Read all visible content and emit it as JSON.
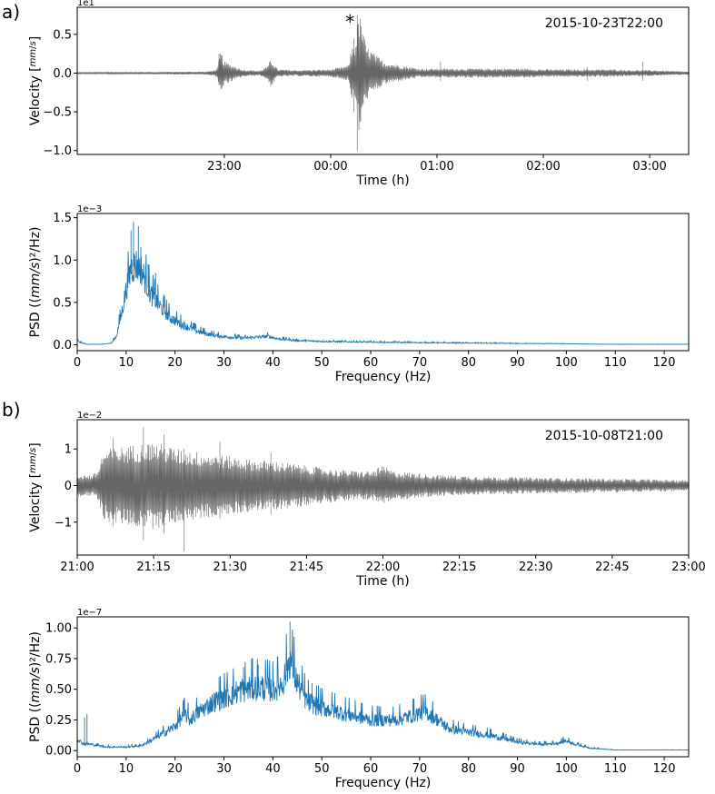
{
  "chart_data": [
    {
      "id": "a_velocity",
      "type": "line",
      "panel_label": "a)",
      "timestamp": "2015-10-23T22:00",
      "marker": "*",
      "ylabel": "Velocity [mm/s]",
      "ylabel_main": "Velocity",
      "ylabel_num": "mm",
      "ylabel_den": "s",
      "xlabel": "Time (h)",
      "multiplier": "1e1",
      "xlim": [
        -83,
        262
      ],
      "ylim": [
        -1.05,
        0.85
      ],
      "xtick_values": [
        0,
        60,
        120,
        180,
        240
      ],
      "xtick_labels": [
        "23:00",
        "00:00",
        "01:00",
        "02:00",
        "03:00"
      ],
      "ytick_values": [
        0.5,
        0.0,
        -0.5,
        -1.0
      ],
      "ytick_labels": [
        "0.5",
        "0.0",
        "−0.5",
        "−1.0"
      ],
      "line_color": "#666666",
      "series": [
        {
          "envelope": [
            [
              -83,
              0.01
            ],
            [
              -10,
              0.02
            ],
            [
              -4,
              0.05
            ],
            [
              -2,
              0.3
            ],
            [
              0,
              0.15
            ],
            [
              5,
              0.1
            ],
            [
              10,
              0.05
            ],
            [
              20,
              0.03
            ],
            [
              25,
              0.1
            ],
            [
              26,
              0.2
            ],
            [
              30,
              0.05
            ],
            [
              40,
              0.04
            ],
            [
              60,
              0.05
            ],
            [
              70,
              0.1
            ],
            [
              72,
              0.35
            ],
            [
              74,
              0.4
            ],
            [
              76,
              0.8
            ],
            [
              80,
              0.35
            ],
            [
              85,
              0.25
            ],
            [
              90,
              0.15
            ],
            [
              100,
              0.1
            ],
            [
              110,
              0.06
            ],
            [
              140,
              0.06
            ],
            [
              170,
              0.06
            ],
            [
              180,
              0.05
            ],
            [
              200,
              0.05
            ],
            [
              220,
              0.05
            ],
            [
              230,
              0.04
            ],
            [
              240,
              0.04
            ],
            [
              262,
              0.02
            ]
          ],
          "spikes": [
            [
              -3,
              0.25,
              -0.15
            ],
            [
              75,
              0.75,
              -1.0
            ],
            [
              73,
              0.45,
              -0.5
            ],
            [
              78,
              0.5,
              -0.4
            ],
            [
              122,
              0.15,
              -0.1
            ],
            [
              205,
              0.08,
              -0.1
            ],
            [
              236,
              0.15,
              -0.1
            ]
          ]
        }
      ]
    },
    {
      "id": "a_psd",
      "type": "line",
      "ylabel": "PSD ((mm/s)²/Hz)",
      "ylabel_main": "PSD ((",
      "ylabel_italic": "mm/s",
      "ylabel_end": ")²/Hz)",
      "xlabel": "Frequency (Hz)",
      "multiplier": "1e−3",
      "xlim": [
        0,
        125
      ],
      "ylim": [
        -0.07,
        1.55
      ],
      "xtick_values": [
        0,
        10,
        20,
        30,
        40,
        50,
        60,
        70,
        80,
        90,
        100,
        110,
        120
      ],
      "xtick_labels": [
        "0",
        "10",
        "20",
        "30",
        "40",
        "50",
        "60",
        "70",
        "80",
        "90",
        "100",
        "110",
        "120"
      ],
      "ytick_values": [
        0.0,
        0.5,
        1.0,
        1.5
      ],
      "ytick_labels": [
        "0.0",
        "0.5",
        "1.0",
        "1.5"
      ],
      "line_color": "#1f77b4",
      "series": [
        {
          "envelope": [
            [
              0,
              0.06
            ],
            [
              0.5,
              0.03
            ],
            [
              2,
              0.005
            ],
            [
              5,
              0.005
            ],
            [
              7,
              0.02
            ],
            [
              8,
              0.1
            ],
            [
              9,
              0.35
            ],
            [
              10,
              0.65
            ],
            [
              11,
              0.9
            ],
            [
              12,
              0.95
            ],
            [
              13,
              0.9
            ],
            [
              14,
              0.75
            ],
            [
              15,
              0.6
            ],
            [
              17,
              0.45
            ],
            [
              19,
              0.32
            ],
            [
              21,
              0.25
            ],
            [
              23,
              0.2
            ],
            [
              25,
              0.15
            ],
            [
              28,
              0.11
            ],
            [
              31,
              0.09
            ],
            [
              34,
              0.08
            ],
            [
              37,
              0.09
            ],
            [
              39,
              0.1
            ],
            [
              41,
              0.07
            ],
            [
              45,
              0.05
            ],
            [
              50,
              0.04
            ],
            [
              60,
              0.03
            ],
            [
              70,
              0.025
            ],
            [
              80,
              0.02
            ],
            [
              90,
              0.015
            ],
            [
              100,
              0.012
            ],
            [
              103,
              0.008
            ],
            [
              110,
              0.005
            ],
            [
              125,
              0.005
            ]
          ],
          "spikes": [
            [
              11.5,
              1.45
            ],
            [
              12.5,
              1.4
            ],
            [
              11,
              1.35
            ],
            [
              13,
              1.15
            ],
            [
              14.5,
              0.95
            ],
            [
              16,
              0.85
            ],
            [
              15.5,
              0.7
            ]
          ]
        }
      ]
    },
    {
      "id": "b_velocity",
      "type": "line",
      "panel_label": "b)",
      "timestamp": "2015-10-08T21:00",
      "ylabel": "Velocity [mm/s]",
      "ylabel_main": "Velocity",
      "ylabel_num": "mm",
      "ylabel_den": "s",
      "xlabel": "Time (h)",
      "multiplier": "1e−2",
      "xlim": [
        0,
        120
      ],
      "ylim": [
        -1.9,
        1.8
      ],
      "xtick_values": [
        0,
        15,
        30,
        45,
        60,
        75,
        90,
        105,
        120
      ],
      "xtick_labels": [
        "21:00",
        "21:15",
        "21:30",
        "21:45",
        "22:00",
        "22:15",
        "22:30",
        "22:45",
        "23:00"
      ],
      "ytick_values": [
        1,
        0,
        -1
      ],
      "ytick_labels": [
        "1",
        "0",
        "−1"
      ],
      "line_color": "#666666",
      "series": [
        {
          "envelope": [
            [
              0,
              0.3
            ],
            [
              3,
              0.3
            ],
            [
              4,
              0.4
            ],
            [
              5,
              0.9
            ],
            [
              6,
              1.0
            ],
            [
              10,
              1.1
            ],
            [
              15,
              1.2
            ],
            [
              20,
              1.0
            ],
            [
              25,
              0.9
            ],
            [
              30,
              0.8
            ],
            [
              35,
              0.7
            ],
            [
              40,
              0.65
            ],
            [
              45,
              0.55
            ],
            [
              50,
              0.45
            ],
            [
              55,
              0.4
            ],
            [
              58,
              0.4
            ],
            [
              60,
              0.55
            ],
            [
              62,
              0.4
            ],
            [
              70,
              0.3
            ],
            [
              80,
              0.25
            ],
            [
              90,
              0.22
            ],
            [
              100,
              0.2
            ],
            [
              110,
              0.18
            ],
            [
              120,
              0.15
            ]
          ],
          "spikes": [
            [
              13,
              1.6,
              -1.5
            ],
            [
              17,
              1.4,
              -1.3
            ],
            [
              21,
              1.0,
              -1.8
            ],
            [
              28,
              1.2,
              -0.9
            ],
            [
              7,
              1.3,
              -1.1
            ],
            [
              38,
              0.9,
              -0.8
            ]
          ]
        }
      ]
    },
    {
      "id": "b_psd",
      "type": "line",
      "ylabel": "PSD ((mm/s)²/Hz)",
      "ylabel_main": "PSD ((",
      "ylabel_italic": "mm/s",
      "ylabel_end": ")²/Hz)",
      "xlabel": "Frequency (Hz)",
      "multiplier": "1e−7",
      "xlim": [
        0,
        125
      ],
      "ylim": [
        -0.05,
        1.09
      ],
      "xtick_values": [
        0,
        10,
        20,
        30,
        40,
        50,
        60,
        70,
        80,
        90,
        100,
        110,
        120
      ],
      "xtick_labels": [
        "0",
        "10",
        "20",
        "30",
        "40",
        "50",
        "60",
        "70",
        "80",
        "90",
        "100",
        "110",
        "120"
      ],
      "ytick_values": [
        0.0,
        0.25,
        0.5,
        0.75,
        1.0
      ],
      "ytick_labels": [
        "0.00",
        "0.25",
        "0.50",
        "0.75",
        "1.00"
      ],
      "line_color": "#1f77b4",
      "series": [
        {
          "envelope": [
            [
              0,
              0.1
            ],
            [
              1,
              0.06
            ],
            [
              3,
              0.05
            ],
            [
              6,
              0.03
            ],
            [
              10,
              0.03
            ],
            [
              13,
              0.04
            ],
            [
              15,
              0.08
            ],
            [
              18,
              0.15
            ],
            [
              20,
              0.2
            ],
            [
              22,
              0.3
            ],
            [
              23,
              0.25
            ],
            [
              25,
              0.32
            ],
            [
              28,
              0.4
            ],
            [
              31,
              0.45
            ],
            [
              34,
              0.5
            ],
            [
              37,
              0.52
            ],
            [
              40,
              0.5
            ],
            [
              42,
              0.55
            ],
            [
              43.5,
              0.75
            ],
            [
              45,
              0.55
            ],
            [
              47,
              0.4
            ],
            [
              50,
              0.35
            ],
            [
              55,
              0.3
            ],
            [
              60,
              0.25
            ],
            [
              65,
              0.25
            ],
            [
              68,
              0.28
            ],
            [
              71,
              0.32
            ],
            [
              73,
              0.27
            ],
            [
              76,
              0.18
            ],
            [
              80,
              0.15
            ],
            [
              85,
              0.12
            ],
            [
              90,
              0.07
            ],
            [
              95,
              0.05
            ],
            [
              98,
              0.06
            ],
            [
              100,
              0.08
            ],
            [
              102,
              0.05
            ],
            [
              105,
              0.02
            ],
            [
              110,
              0.005
            ],
            [
              125,
              0.005
            ]
          ],
          "spikes": [
            [
              1.5,
              0.27
            ],
            [
              2,
              0.3
            ],
            [
              43.5,
              1.05
            ],
            [
              44,
              0.95
            ],
            [
              42.8,
              0.85
            ],
            [
              37,
              0.7
            ],
            [
              34,
              0.68
            ],
            [
              48,
              0.55
            ],
            [
              29,
              0.6
            ]
          ]
        }
      ]
    }
  ]
}
